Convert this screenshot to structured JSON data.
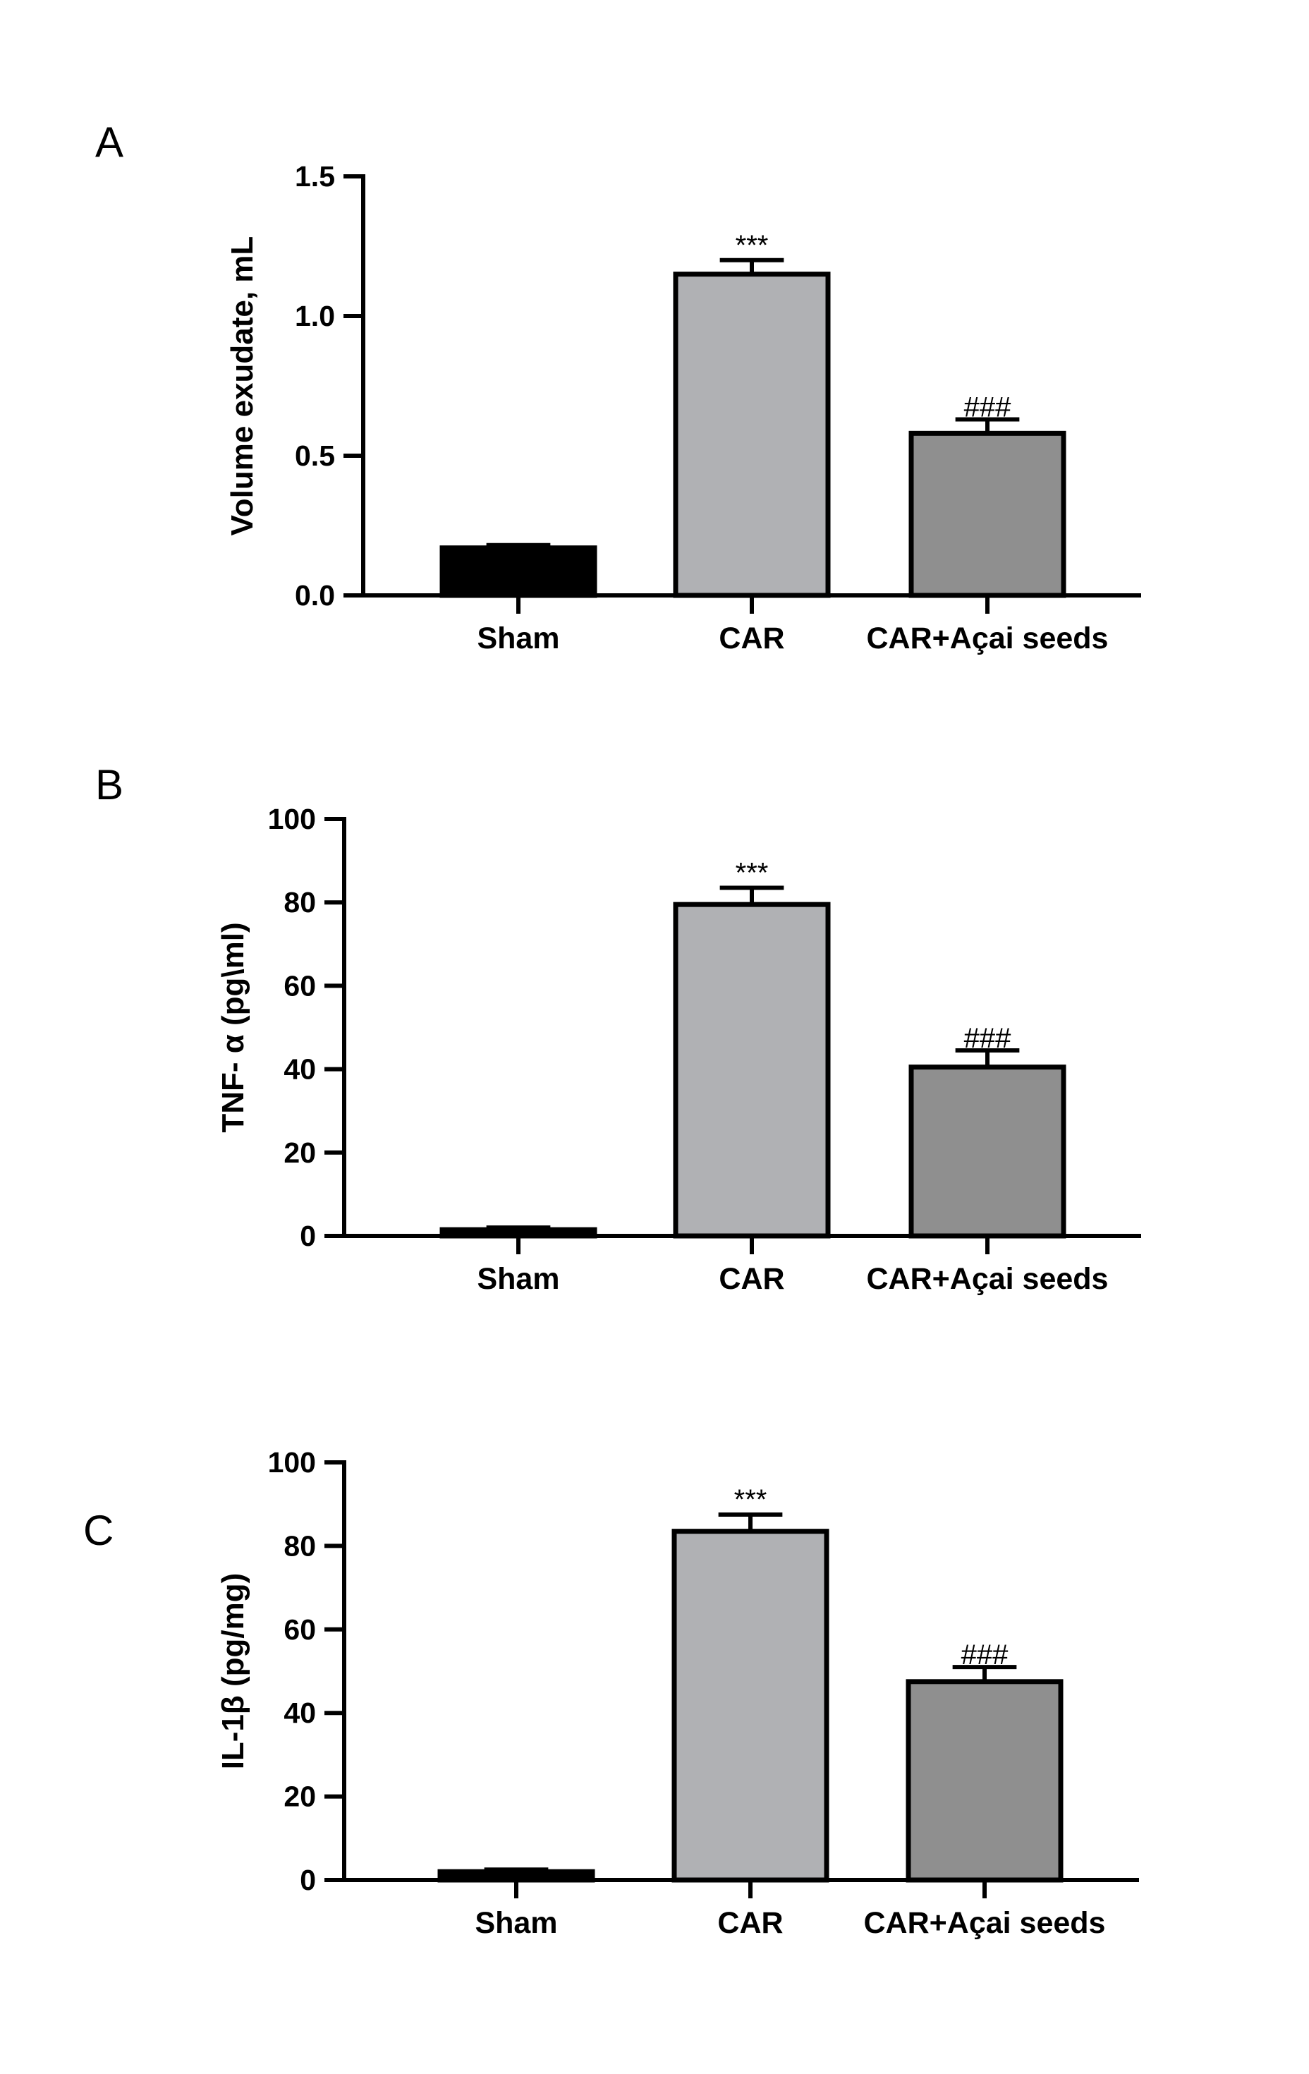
{
  "chart_data": [
    {
      "panel": "A",
      "type": "bar",
      "categories": [
        "Sham",
        "CAR",
        "CAR+Açai seeds"
      ],
      "values": [
        0.17,
        1.15,
        0.58
      ],
      "errors": [
        0.01,
        0.05,
        0.05
      ],
      "annotations": [
        "",
        "***",
        "###"
      ],
      "colors": [
        "#000000",
        "#b0b1b4",
        "#8f8f8f"
      ],
      "ylabel": "Volume exudate, mL",
      "ylim": [
        0,
        1.5
      ],
      "yticks": [
        0.0,
        0.5,
        1.0,
        1.5
      ],
      "ytick_labels": [
        "0.0",
        "0.5",
        "1.0",
        "1.5"
      ],
      "grid": false
    },
    {
      "panel": "B",
      "type": "bar",
      "categories": [
        "Sham",
        "CAR",
        "CAR+Açai seeds"
      ],
      "values": [
        1.5,
        79.5,
        40.5
      ],
      "errors": [
        0.5,
        4,
        4
      ],
      "annotations": [
        "",
        "***",
        "###"
      ],
      "colors": [
        "#000000",
        "#b0b1b4",
        "#8f8f8f"
      ],
      "ylabel": "TNF- α (pg\\ml)",
      "ylim": [
        0,
        100
      ],
      "yticks": [
        0,
        20,
        40,
        60,
        80,
        100
      ],
      "ytick_labels": [
        "0",
        "20",
        "40",
        "60",
        "80",
        "100"
      ],
      "grid": false
    },
    {
      "panel": "C",
      "type": "bar",
      "categories": [
        "Sham",
        "CAR",
        "CAR+Açai seeds"
      ],
      "values": [
        2,
        83.5,
        47.5
      ],
      "errors": [
        0.5,
        4,
        3.5
      ],
      "annotations": [
        "",
        "***",
        "###"
      ],
      "colors": [
        "#000000",
        "#b0b1b4",
        "#8f8f8f"
      ],
      "ylabel": "IL-1β (pg/mg)",
      "ylim": [
        0,
        100
      ],
      "yticks": [
        0,
        20,
        40,
        60,
        80,
        100
      ],
      "ytick_labels": [
        "0",
        "20",
        "40",
        "60",
        "80",
        "100"
      ],
      "grid": false
    }
  ]
}
